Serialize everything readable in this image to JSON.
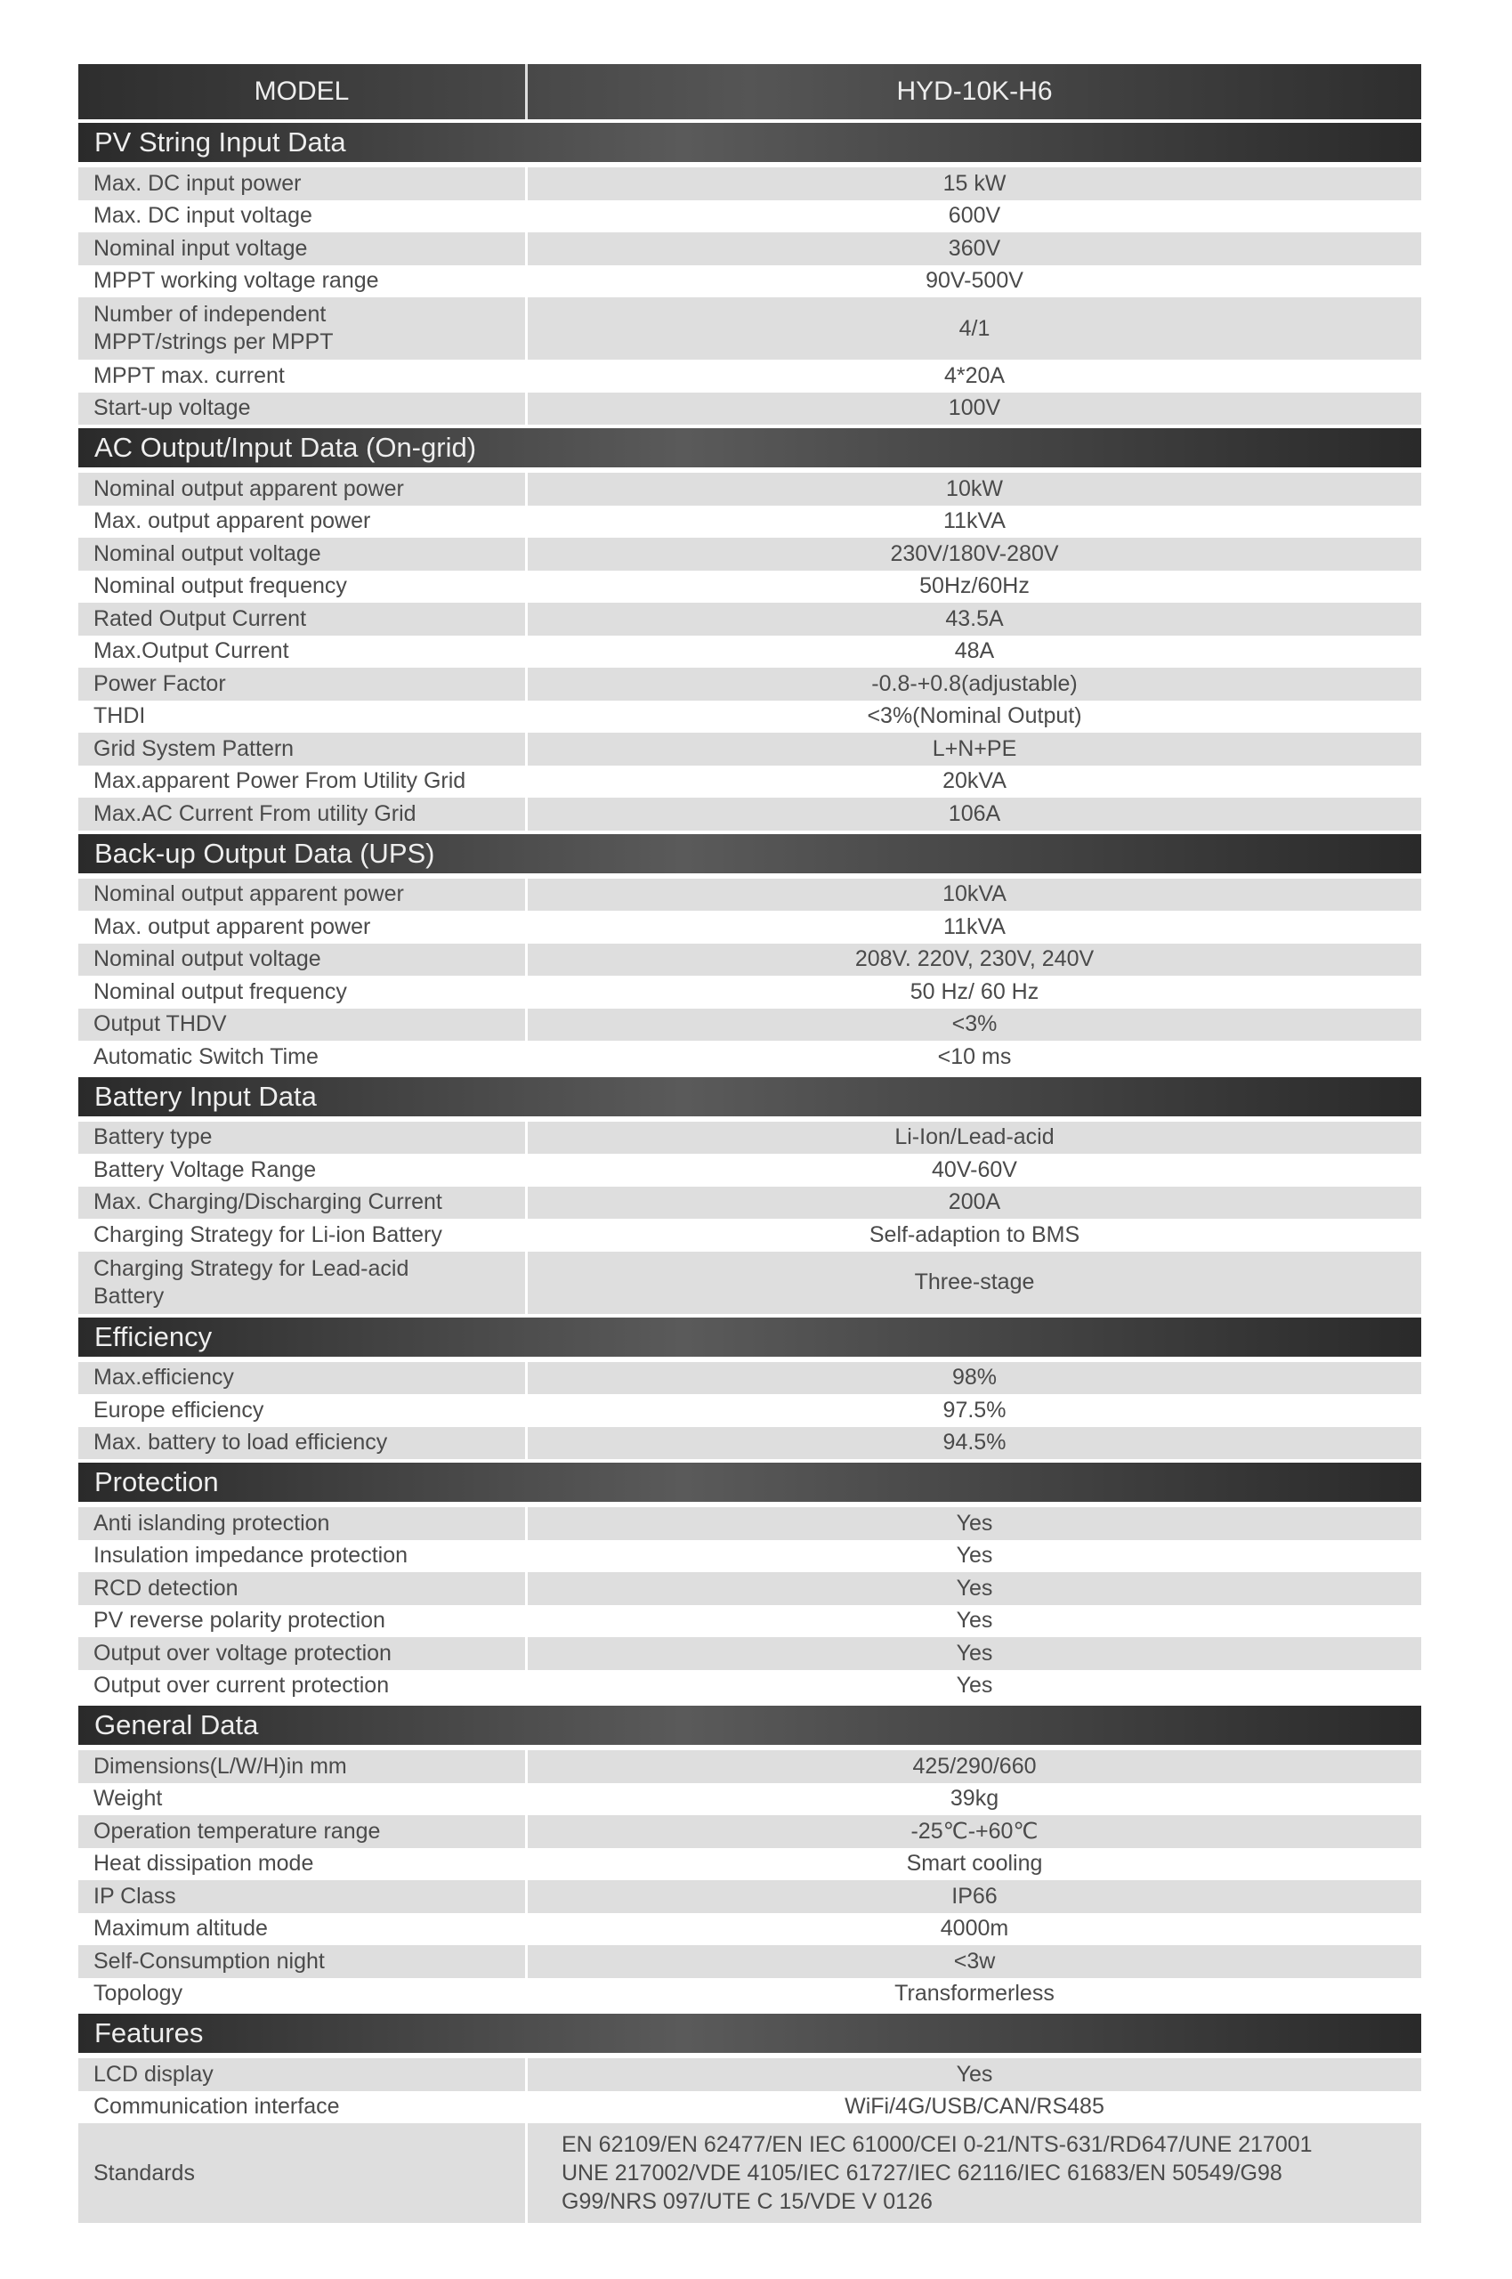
{
  "header": {
    "model_label": "MODEL",
    "model_value": "HYD-10K-H6"
  },
  "sections": [
    {
      "title": "PV String Input Data",
      "rows": [
        [
          "Max. DC input power",
          "15 kW"
        ],
        [
          "Max. DC input voltage",
          "600V"
        ],
        [
          "Nominal input voltage",
          "360V"
        ],
        [
          "MPPT working voltage range",
          "90V-500V"
        ],
        [
          "Number of independent\nMPPT/strings per MPPT",
          "4/1"
        ],
        [
          "MPPT  max. current",
          "4*20A"
        ],
        [
          "Start-up voltage",
          "100V"
        ]
      ]
    },
    {
      "title": "AC Output/Input Data (On-grid)",
      "rows": [
        [
          "Nominal output apparent power",
          "10kW"
        ],
        [
          "Max. output apparent power",
          "11kVA"
        ],
        [
          "Nominal output voltage",
          "230V/180V-280V"
        ],
        [
          "Nominal output frequency",
          "50Hz/60Hz"
        ],
        [
          "Rated Output Current",
          "43.5A"
        ],
        [
          "Max.Output Current",
          "48A"
        ],
        [
          "Power Factor",
          "-0.8-+0.8(adjustable)"
        ],
        [
          "THDI",
          "<3%(Nominal Output)"
        ],
        [
          "Grid System Pattern",
          "L+N+PE"
        ],
        [
          "Max.apparent Power From Utility Grid",
          "20kVA"
        ],
        [
          "Max.AC Current  From utility Grid",
          "106A"
        ]
      ]
    },
    {
      "title": "Back-up Output Data (UPS)",
      "rows": [
        [
          "Nominal output apparent power",
          "10kVA"
        ],
        [
          "Max. output apparent power",
          "11kVA"
        ],
        [
          "Nominal output voltage",
          "208V. 220V, 230V, 240V"
        ],
        [
          "Nominal output frequency",
          "50 Hz/ 60 Hz"
        ],
        [
          "Output THDV",
          "<3%"
        ],
        [
          "Automatic Switch Time",
          "<10 ms"
        ]
      ]
    },
    {
      "title": "Battery Input Data",
      "rows": [
        [
          "Battery type",
          "Li-Ion/Lead-acid"
        ],
        [
          "Battery Voltage Range",
          "40V-60V"
        ],
        [
          "Max. Charging/Discharging Current",
          "200A"
        ],
        [
          "Charging Strategy for Li-ion Battery",
          "Self-adaption to BMS"
        ],
        [
          "Charging Strategy for Lead-acid\nBattery",
          "Three-stage"
        ]
      ]
    },
    {
      "title": "Efficiency",
      "rows": [
        [
          "Max.efficiency",
          "98%"
        ],
        [
          "Europe efficiency",
          "97.5%"
        ],
        [
          "Max. battery to load efficiency",
          "94.5%"
        ]
      ]
    },
    {
      "title": "Protection",
      "rows": [
        [
          "Anti islanding protection",
          "Yes"
        ],
        [
          "Insulation impedance protection",
          "Yes"
        ],
        [
          "RCD detection",
          "Yes"
        ],
        [
          "PV reverse polarity protection",
          "Yes"
        ],
        [
          "Output over voltage protection",
          "Yes"
        ],
        [
          "Output over current protection",
          "Yes"
        ]
      ]
    },
    {
      "title": "General Data",
      "rows": [
        [
          "Dimensions(L/W/H)in mm",
          "425/290/660"
        ],
        [
          "Weight",
          "39kg"
        ],
        [
          "Operation temperature range",
          "-25℃-+60℃"
        ],
        [
          "Heat dissipation mode",
          "Smart cooling"
        ],
        [
          "IP Class",
          "IP66"
        ],
        [
          "Maximum altitude",
          "4000m"
        ],
        [
          "Self-Consumption night",
          "<3w"
        ],
        [
          "Topology",
          "Transformerless"
        ]
      ]
    },
    {
      "title": "Features",
      "rows": [
        [
          "LCD display",
          "Yes"
        ],
        [
          "Communication interface",
          "WiFi/4G/USB/CAN/RS485"
        ],
        [
          "Standards",
          "EN 62109/EN 62477/EN IEC 61000/CEI 0-21/NTS-631/RD647/UNE 217001\nUNE 217002/VDE 4105/IEC 61727/IEC 62116/IEC 61683/EN 50549/G98\nG99/NRS 097/UTE C 15/VDE V 0126"
        ]
      ]
    }
  ]
}
